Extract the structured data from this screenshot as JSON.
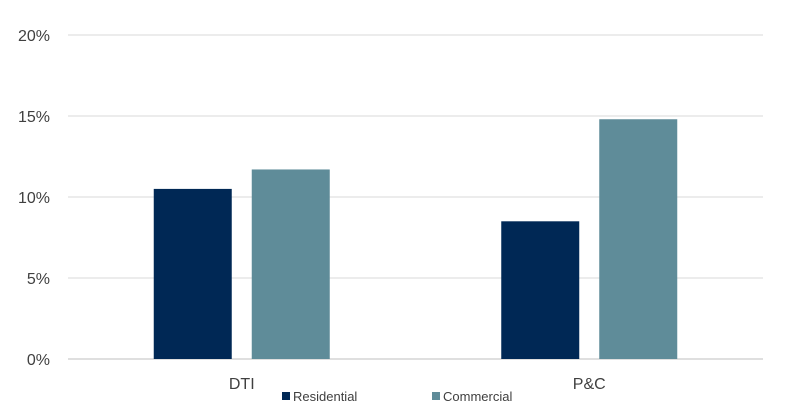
{
  "chart_data": {
    "type": "bar",
    "title": "",
    "xlabel": "",
    "ylabel": "",
    "categories": [
      "DTI",
      "P&C"
    ],
    "series": [
      {
        "name": "Residential",
        "values": [
          10.5,
          8.5
        ],
        "color": "#002855"
      },
      {
        "name": "Commercial",
        "values": [
          11.7,
          14.8
        ],
        "color": "#5F8C99"
      }
    ],
    "ylim": [
      0,
      20
    ],
    "yticks": [
      0,
      5,
      10,
      15,
      20
    ],
    "ytick_labels": [
      "0%",
      "5%",
      "10%",
      "15%",
      "20%"
    ],
    "grid": true,
    "gridline_color": "#D9D9D9",
    "legend_position": "bottom"
  }
}
